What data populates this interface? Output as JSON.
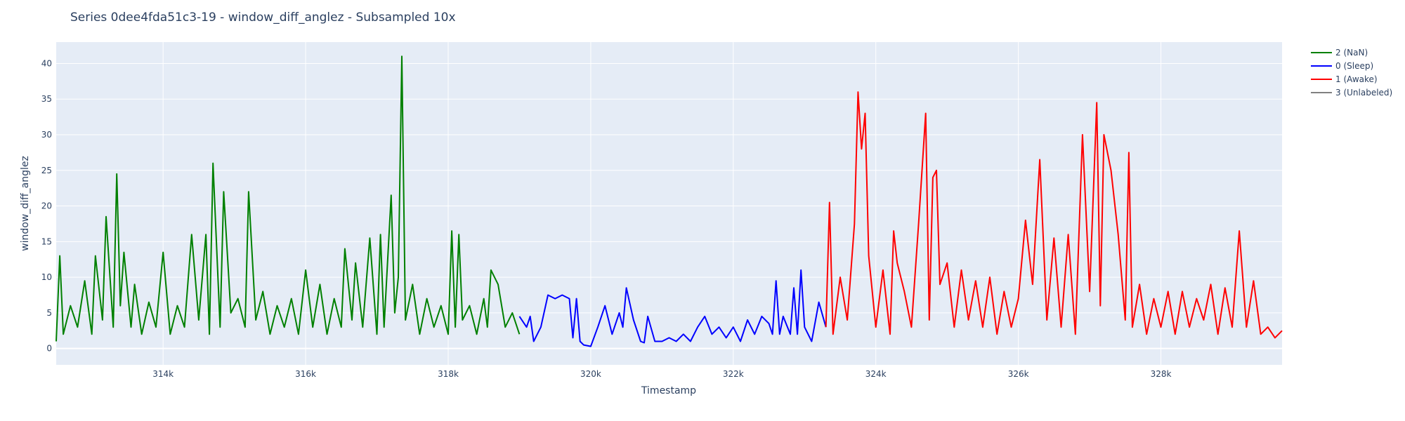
{
  "chart_data": {
    "type": "line",
    "title": "Series 0dee4fda51c3-19 - window_diff_anglez - Subsampled 10x",
    "xlabel": "Timestamp",
    "ylabel": "window_diff_anglez",
    "xlim": [
      312500,
      329700
    ],
    "ylim": [
      -2.3,
      43
    ],
    "x_ticks": [
      314000,
      316000,
      318000,
      320000,
      322000,
      324000,
      326000,
      328000
    ],
    "x_tick_labels": [
      "314k",
      "316k",
      "318k",
      "320k",
      "322k",
      "324k",
      "326k",
      "328k"
    ],
    "y_ticks": [
      0,
      5,
      10,
      15,
      20,
      25,
      30,
      35,
      40
    ],
    "y_tick_labels": [
      "0",
      "5",
      "10",
      "15",
      "20",
      "25",
      "30",
      "35",
      "40"
    ],
    "grid": true,
    "legend_position": "top-right",
    "background": "#e5ecf6",
    "series": [
      {
        "name": "2 (NaN)",
        "color": "#008000",
        "x": [
          312500,
          312550,
          312600,
          312700,
          312800,
          312900,
          313000,
          313050,
          313150,
          313200,
          313300,
          313350,
          313400,
          313450,
          313550,
          313600,
          313700,
          313800,
          313900,
          314000,
          314100,
          314200,
          314300,
          314400,
          314500,
          314600,
          314650,
          314700,
          314800,
          314850,
          314950,
          315050,
          315150,
          315200,
          315300,
          315400,
          315500,
          315600,
          315700,
          315800,
          315900,
          316000,
          316100,
          316200,
          316300,
          316400,
          316500,
          316550,
          316650,
          316700,
          316800,
          316900,
          317000,
          317050,
          317100,
          317200,
          317250,
          317300,
          317350,
          317400,
          317500,
          317600,
          317700,
          317800,
          317900,
          318000,
          318050,
          318100,
          318150,
          318200,
          318300,
          318400,
          318500,
          318550,
          318600,
          318700,
          318800,
          318900,
          319000
        ],
        "y": [
          1,
          13,
          2,
          6,
          3,
          9.5,
          2,
          13,
          4,
          18.5,
          3,
          24.5,
          6,
          13.5,
          3,
          9,
          2,
          6.5,
          3,
          13.5,
          2,
          6,
          3,
          16,
          4,
          16,
          2,
          26,
          3,
          22,
          5,
          7,
          3,
          22,
          4,
          8,
          2,
          6,
          3,
          7,
          2,
          11,
          3,
          9,
          2,
          7,
          3,
          14,
          4,
          12,
          3,
          15.5,
          2,
          16,
          3,
          21.5,
          5,
          10,
          41,
          4,
          9,
          2,
          7,
          3,
          6,
          2,
          16.5,
          3,
          16,
          4,
          6,
          2,
          7,
          3,
          11,
          9,
          3,
          5,
          2
        ]
      },
      {
        "name": "0 (Sleep)",
        "color": "#0000ff",
        "x": [
          319000,
          319100,
          319150,
          319200,
          319300,
          319400,
          319500,
          319600,
          319700,
          319750,
          319800,
          319850,
          319900,
          320000,
          320100,
          320200,
          320300,
          320400,
          320450,
          320500,
          320600,
          320700,
          320750,
          320800,
          320900,
          321000,
          321100,
          321200,
          321300,
          321400,
          321500,
          321600,
          321700,
          321800,
          321900,
          322000,
          322100,
          322200,
          322300,
          322400,
          322500,
          322550,
          322600,
          322650,
          322700,
          322800,
          322850,
          322900,
          322950,
          323000,
          323100,
          323200,
          323300
        ],
        "y": [
          4.5,
          3,
          4.5,
          1,
          3,
          7.5,
          7,
          7.5,
          7,
          1.5,
          7,
          1,
          0.5,
          0.3,
          3,
          6,
          2,
          5,
          3,
          8.5,
          4,
          1,
          0.8,
          4.5,
          1,
          1,
          1.5,
          1,
          2,
          1,
          3,
          4.5,
          2,
          3,
          1.5,
          3,
          1,
          4,
          2,
          4.5,
          3.5,
          2,
          9.5,
          2,
          4.5,
          2,
          8.5,
          2,
          11,
          3,
          1,
          6.5,
          3
        ]
      },
      {
        "name": "1 (Awake)",
        "color": "#ff0000",
        "x": [
          323300,
          323350,
          323400,
          323500,
          323600,
          323700,
          323750,
          323800,
          323850,
          323900,
          324000,
          324100,
          324200,
          324250,
          324300,
          324400,
          324500,
          324600,
          324700,
          324750,
          324800,
          324850,
          324900,
          325000,
          325100,
          325200,
          325300,
          325400,
          325500,
          325600,
          325700,
          325800,
          325900,
          326000,
          326100,
          326200,
          326300,
          326400,
          326500,
          326600,
          326700,
          326800,
          326900,
          327000,
          327100,
          327150,
          327200,
          327300,
          327400,
          327500,
          327550,
          327600,
          327700,
          327800,
          327900,
          328000,
          328100,
          328200,
          328300,
          328400,
          328500,
          328600,
          328700,
          328800,
          328900,
          329000,
          329100,
          329200,
          329300,
          329400,
          329500,
          329600,
          329700
        ],
        "y": [
          3,
          20.5,
          2,
          10,
          4,
          17.5,
          36,
          28,
          33,
          13,
          3,
          11,
          2,
          16.5,
          12,
          8,
          3,
          17.5,
          33,
          4,
          24,
          25,
          9,
          12,
          3,
          11,
          4,
          9.5,
          3,
          10,
          2,
          8,
          3,
          7,
          18,
          9,
          26.5,
          4,
          15.5,
          3,
          16,
          2,
          30,
          8,
          34.5,
          6,
          30,
          25,
          16,
          4,
          27.5,
          3,
          9,
          2,
          7,
          3,
          8,
          2,
          8,
          3,
          7,
          4,
          9,
          2,
          8.5,
          3,
          16.5,
          3,
          9.5,
          2,
          3,
          1.5,
          2.5
        ]
      },
      {
        "name": "3 (Unlabeled)",
        "color": "#808080",
        "x": [],
        "y": []
      }
    ]
  }
}
